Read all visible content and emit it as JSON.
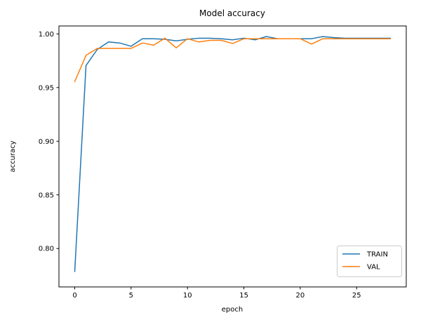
{
  "chart_data": {
    "type": "line",
    "title": "Model accuracy",
    "xlabel": "epoch",
    "ylabel": "accuracy",
    "grid": false,
    "x": [
      0,
      1,
      2,
      3,
      4,
      5,
      6,
      7,
      8,
      9,
      10,
      11,
      12,
      13,
      14,
      15,
      16,
      17,
      18,
      19,
      20,
      21,
      22,
      23,
      24,
      25,
      26,
      27,
      28
    ],
    "series": [
      {
        "name": "TRAIN",
        "color": "#1f77b4",
        "values": [
          0.7785,
          0.9705,
          0.9855,
          0.9925,
          0.9915,
          0.9885,
          0.9955,
          0.9955,
          0.995,
          0.9935,
          0.995,
          0.996,
          0.996,
          0.9955,
          0.9945,
          0.996,
          0.9945,
          0.9975,
          0.9955,
          0.9955,
          0.9955,
          0.9955,
          0.9975,
          0.9965,
          0.996,
          0.996,
          0.996,
          0.996,
          0.996
        ]
      },
      {
        "name": "VAL",
        "color": "#ff7f0e",
        "values": [
          0.9555,
          0.98,
          0.9865,
          0.9865,
          0.9865,
          0.9865,
          0.9915,
          0.9895,
          0.996,
          0.987,
          0.9955,
          0.9925,
          0.994,
          0.994,
          0.991,
          0.9955,
          0.9955,
          0.9955,
          0.9955,
          0.9955,
          0.9955,
          0.9905,
          0.9955,
          0.9955,
          0.9955,
          0.9955,
          0.9955,
          0.9955,
          0.9955
        ]
      }
    ],
    "xlim": [
      -1.4,
      29.4
    ],
    "ylim": [
      0.7642,
      1.0074
    ],
    "xticks": {
      "values": [
        0,
        5,
        10,
        15,
        20,
        25
      ],
      "labels": [
        "0",
        "5",
        "10",
        "15",
        "20",
        "25"
      ]
    },
    "yticks": {
      "values": [
        0.8,
        0.85,
        0.9,
        0.95,
        1.0
      ],
      "labels": [
        "0.80",
        "0.85",
        "0.90",
        "0.95",
        "1.00"
      ]
    },
    "legend": {
      "position": "lower right",
      "entries": [
        "TRAIN",
        "VAL"
      ]
    },
    "colors": {
      "frame": "#000000",
      "legend_border": "#cccccc",
      "background": "#ffffff"
    }
  }
}
